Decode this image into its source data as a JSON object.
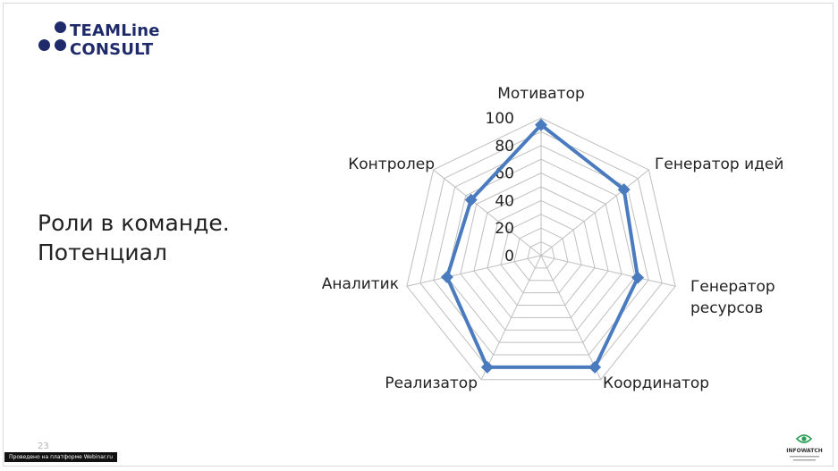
{
  "logo": {
    "line1": "TEAMLine",
    "line2": "CONSULT"
  },
  "slide": {
    "title_line1": "Роли в команде.",
    "title_line2": "Потенциал",
    "page_number": "23"
  },
  "footer": {
    "platform_note": "Проведено на платформе Webinar.ru",
    "partner_logo_text": "INFOWATCH"
  },
  "colors": {
    "brand": "#1f2a6b",
    "series": "#4a7bbf",
    "grid": "#bfbfbf"
  },
  "chart_data": {
    "type": "radar",
    "categories": [
      "Мотиватор",
      "Генератор идей",
      "Генератор ресурсов",
      "Координатор",
      "Реализатор",
      "Аналитик",
      "Контролер"
    ],
    "category_lines": [
      [
        "Мотиватор"
      ],
      [
        "Генератор идей"
      ],
      [
        "Генератор",
        "ресурсов"
      ],
      [
        "Координатор"
      ],
      [
        "Реализатор"
      ],
      [
        "Аналитик"
      ],
      [
        "Контролер"
      ]
    ],
    "axis_ticks": [
      "0",
      "20",
      "40",
      "60",
      "80",
      "100"
    ],
    "ylim": [
      0,
      100
    ],
    "series": [
      {
        "values": [
          95,
          77,
          72,
          90,
          90,
          70,
          65
        ]
      }
    ]
  }
}
